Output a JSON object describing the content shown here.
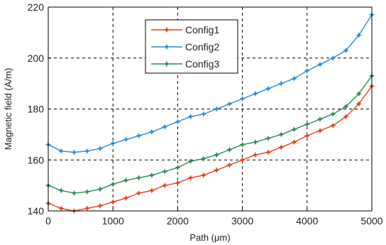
{
  "chart_data": {
    "type": "line",
    "xlabel": "Path (μm)",
    "ylabel": "Magnetic field (A/m)",
    "xlim": [
      0,
      5000
    ],
    "ylim": [
      140,
      220
    ],
    "xticks": [
      0,
      1000,
      2000,
      3000,
      4000,
      5000
    ],
    "yticks": [
      140,
      160,
      180,
      200,
      220
    ],
    "grid": true,
    "legend_position": "top-center",
    "x": [
      0,
      200,
      400,
      600,
      800,
      1000,
      1200,
      1400,
      1600,
      1800,
      2000,
      2200,
      2400,
      2600,
      2800,
      3000,
      3200,
      3400,
      3600,
      3800,
      4000,
      4200,
      4400,
      4600,
      4800,
      5000
    ],
    "series": [
      {
        "name": "Config1",
        "color": "#e8401c",
        "marker": "star",
        "values": [
          143,
          141,
          140,
          141,
          142,
          143.5,
          145,
          147,
          148,
          150,
          151,
          153,
          154,
          156,
          158,
          160,
          162,
          163,
          165,
          167,
          169.5,
          171.5,
          173.5,
          177,
          182,
          189
        ]
      },
      {
        "name": "Config2",
        "color": "#2a8fd8",
        "marker": "star",
        "values": [
          166,
          163.5,
          163,
          163.5,
          164.5,
          166.5,
          168,
          169.5,
          171,
          173,
          175,
          177,
          178,
          180,
          182,
          184,
          186,
          188,
          190,
          192,
          195,
          197.5,
          200,
          203,
          209,
          217
        ]
      },
      {
        "name": "Config3",
        "color": "#2e8b57",
        "marker": "star",
        "values": [
          150,
          148,
          147,
          147.5,
          148.5,
          150.5,
          152,
          153,
          154,
          155.5,
          157,
          159.5,
          160.5,
          162,
          164,
          166,
          167,
          168.5,
          170,
          172,
          174,
          176,
          178,
          181,
          186,
          193
        ]
      }
    ]
  }
}
